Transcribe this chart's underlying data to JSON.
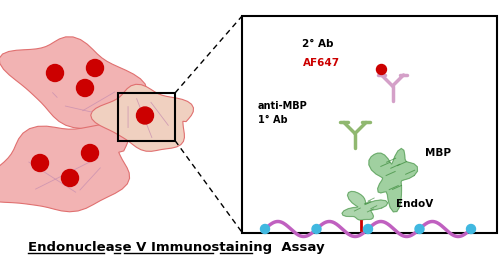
{
  "bg_color": "#ffffff",
  "title_text": "Endonuclease V Immunostaining  Assay",
  "cell_color": "#f2b3b3",
  "cell_edge_color": "#e07070",
  "nucleus_color": "#cc0000",
  "cell_line_color": "#c890b0",
  "label_2ab": "2° Ab",
  "label_af647": "AF647",
  "label_af647_color": "#cc0000",
  "label_antimhp": "anti-MBP\n1° Ab",
  "label_mbp": "MBP",
  "label_endov": "EndoV",
  "ab2_color": "#d4a0c8",
  "ab1_color": "#90b870",
  "mbp_color": "#90c890",
  "dna_color": "#c060c0",
  "dna_node_color": "#40b8e0",
  "nick_color": "#cc0000",
  "right_panel_bg": "#ffffff"
}
